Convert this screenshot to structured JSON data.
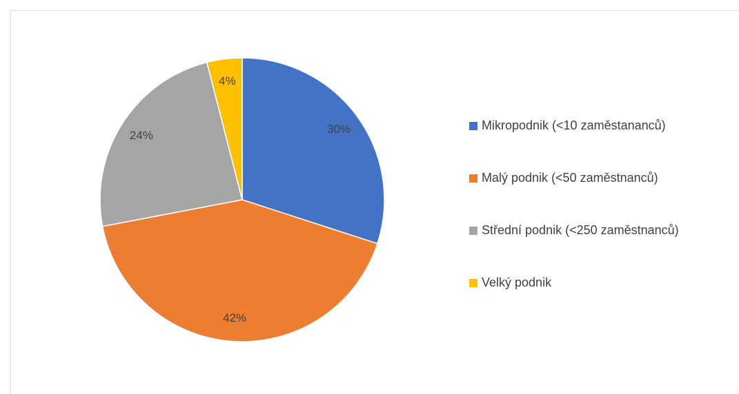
{
  "chart_data": {
    "type": "pie",
    "categories": [
      "Mikropodnik (<10 zaměstananců)",
      "Malý podnik (<50 zaměstnanců)",
      "Střední podnik (<250 zaměstnanců)",
      "Velký podnik"
    ],
    "values": [
      30,
      42,
      24,
      4
    ],
    "value_labels": [
      "30%",
      "42%",
      "24%",
      "4%"
    ],
    "colors": [
      "#4472c4",
      "#ed7d31",
      "#a5a5a5",
      "#ffc000"
    ],
    "legend": "right"
  }
}
